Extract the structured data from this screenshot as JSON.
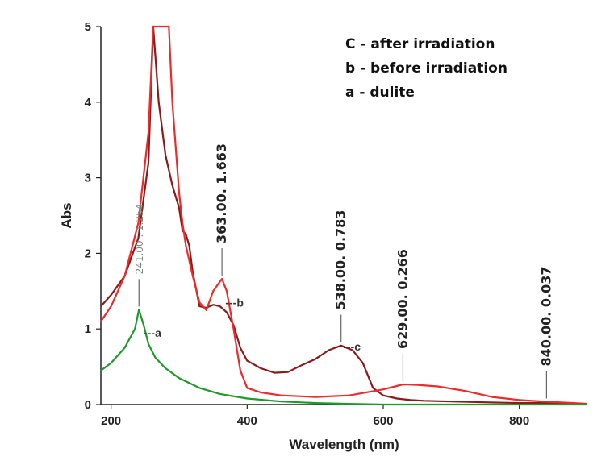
{
  "chart_data": {
    "type": "line",
    "xlabel": "Wavelength (nm)",
    "ylabel": "Abs",
    "xlim": [
      185,
      900
    ],
    "ylim": [
      0,
      5
    ],
    "x_ticks": [
      200,
      400,
      600,
      800
    ],
    "y_ticks": [
      0,
      1,
      2,
      3,
      4,
      5
    ],
    "legend": {
      "placement": "top-right",
      "entries": [
        "C - after irradiation",
        "b - before irradiation",
        "a - dulite"
      ]
    },
    "series": [
      {
        "name": "c",
        "color": "#8b1a1a",
        "x": [
          185,
          200,
          220,
          240,
          255,
          262,
          270,
          280,
          290,
          300,
          305,
          310,
          315,
          320,
          330,
          340,
          350,
          360,
          370,
          380,
          390,
          400,
          420,
          440,
          460,
          480,
          500,
          520,
          538,
          555,
          570,
          585,
          600,
          620,
          640,
          660,
          700,
          750,
          800,
          850,
          900
        ],
        "y": [
          1.3,
          1.45,
          1.7,
          2.2,
          3.2,
          5.0,
          4.0,
          3.3,
          2.9,
          2.6,
          2.3,
          2.25,
          2.1,
          1.75,
          1.3,
          1.28,
          1.32,
          1.3,
          1.22,
          1.05,
          0.75,
          0.58,
          0.48,
          0.42,
          0.43,
          0.52,
          0.6,
          0.72,
          0.78,
          0.72,
          0.55,
          0.22,
          0.12,
          0.08,
          0.06,
          0.05,
          0.04,
          0.03,
          0.02,
          0.02,
          0.01
        ]
      },
      {
        "name": "b",
        "color": "#ee2a2a",
        "x": [
          185,
          200,
          220,
          240,
          255,
          262,
          270,
          285,
          290,
          300,
          305,
          310,
          320,
          330,
          340,
          350,
          363,
          370,
          380,
          390,
          400,
          420,
          450,
          500,
          550,
          600,
          629,
          650,
          680,
          720,
          760,
          800,
          840,
          880,
          900
        ],
        "y": [
          1.1,
          1.3,
          1.7,
          2.4,
          3.6,
          5.0,
          5.0,
          5.0,
          4.0,
          2.8,
          2.4,
          2.1,
          1.7,
          1.35,
          1.25,
          1.5,
          1.663,
          1.5,
          1.0,
          0.45,
          0.22,
          0.16,
          0.12,
          0.1,
          0.12,
          0.2,
          0.266,
          0.26,
          0.24,
          0.18,
          0.1,
          0.06,
          0.037,
          0.02,
          0.01
        ]
      },
      {
        "name": "a",
        "color": "#1f9a2a",
        "x": [
          185,
          200,
          220,
          235,
          241,
          248,
          255,
          265,
          280,
          300,
          330,
          360,
          400,
          450,
          500,
          550,
          600,
          700,
          800,
          900
        ],
        "y": [
          0.45,
          0.55,
          0.75,
          1.0,
          1.254,
          1.05,
          0.8,
          0.62,
          0.48,
          0.35,
          0.22,
          0.14,
          0.08,
          0.04,
          0.02,
          0.01,
          0.0,
          0.0,
          0.0,
          0.0
        ]
      }
    ],
    "peak_labels": [
      {
        "text": "241.00 . 1.254",
        "x": 241,
        "y": 1.254
      },
      {
        "text": "363.00. 1.663",
        "x": 363,
        "y": 1.663
      },
      {
        "text": "538.00. 0.783",
        "x": 538,
        "y": 0.783
      },
      {
        "text": "629.00. 0.266",
        "x": 629,
        "y": 0.266
      },
      {
        "text": "840.00.  0.037",
        "x": 840,
        "y": 0.037
      }
    ],
    "curve_tags": [
      {
        "text": "---a",
        "x": 248,
        "y": 0.95
      },
      {
        "text": "---b",
        "x": 368,
        "y": 1.35
      },
      {
        "text": "---c",
        "x": 541,
        "y": 0.77
      }
    ]
  }
}
